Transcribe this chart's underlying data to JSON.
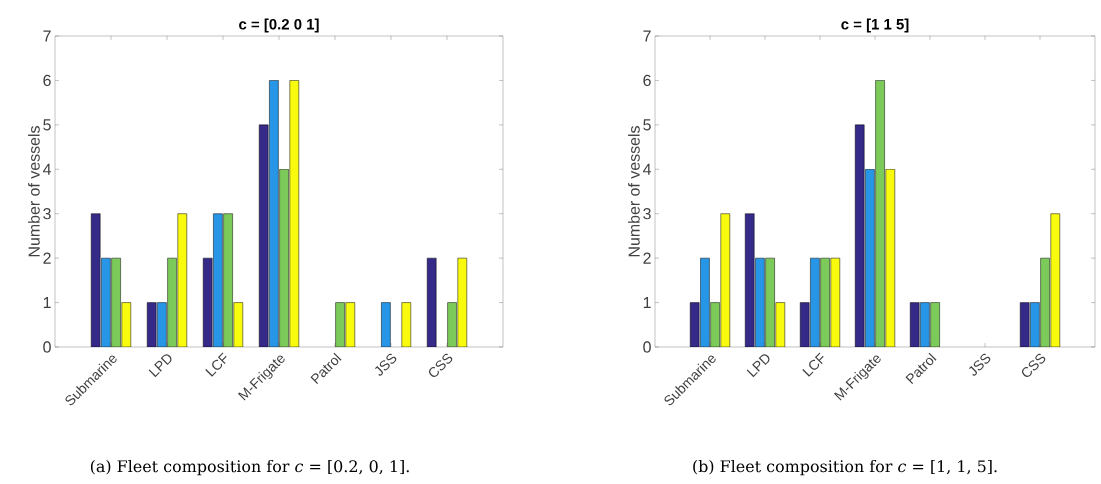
{
  "chart_data": [
    {
      "type": "bar",
      "title": "c = [0.2    0    1]",
      "ylabel": "Number of vessels",
      "categories": [
        "Submarine",
        "LPD",
        "LCF",
        "M-Frigate",
        "Patrol",
        "JSS",
        "CSS"
      ],
      "series": [
        {
          "color": "#352a87",
          "values": [
            3,
            1,
            2,
            5,
            0,
            0,
            2
          ]
        },
        {
          "color": "#2896e6",
          "values": [
            2,
            1,
            3,
            6,
            0,
            1,
            0
          ]
        },
        {
          "color": "#7ccb5a",
          "values": [
            2,
            2,
            3,
            4,
            1,
            0,
            1
          ]
        },
        {
          "color": "#f9fb0e",
          "values": [
            1,
            3,
            1,
            6,
            1,
            1,
            2
          ]
        }
      ],
      "ylim": [
        0,
        7
      ],
      "yticks": [
        0,
        1,
        2,
        3,
        4,
        5,
        6,
        7
      ],
      "grid": false,
      "annotations": [
        "(a) Fleet composition for *c* = [0.2, 0, 1]."
      ]
    },
    {
      "type": "bar",
      "title": "c = [1  1  5]",
      "ylabel": "Number of vessels",
      "categories": [
        "Submarine",
        "LPD",
        "LCF",
        "M-Frigate",
        "Patrol",
        "JSS",
        "CSS"
      ],
      "series": [
        {
          "color": "#352a87",
          "values": [
            1,
            3,
            1,
            5,
            1,
            0,
            1
          ]
        },
        {
          "color": "#2896e6",
          "values": [
            2,
            2,
            2,
            4,
            1,
            0,
            1
          ]
        },
        {
          "color": "#7ccb5a",
          "values": [
            1,
            2,
            2,
            6,
            1,
            0,
            2
          ]
        },
        {
          "color": "#f9fb0e",
          "values": [
            3,
            1,
            2,
            4,
            0,
            0,
            3
          ]
        }
      ],
      "ylim": [
        0,
        7
      ],
      "yticks": [
        0,
        1,
        2,
        3,
        4,
        5,
        6,
        7
      ],
      "grid": false,
      "annotations": [
        "(b) Fleet composition for *c* = [1, 1, 5]."
      ]
    }
  ]
}
